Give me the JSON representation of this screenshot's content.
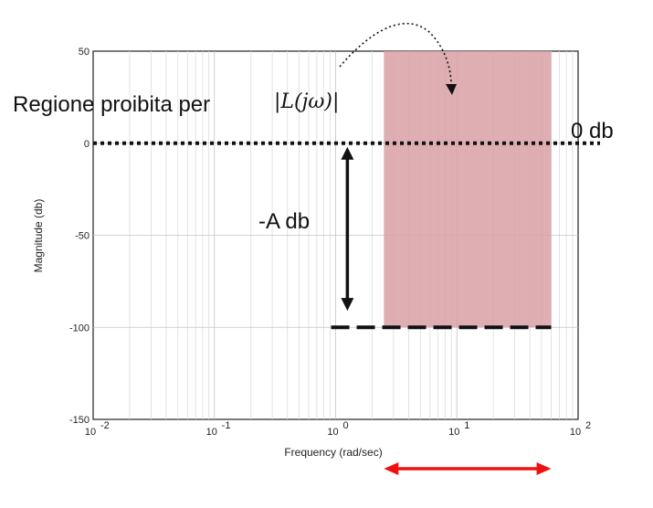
{
  "chart_data": {
    "type": "line",
    "title": "",
    "xlabel": "Frequency (rad/sec)",
    "ylabel": "Magnitude (db)",
    "xscale": "log",
    "xlim": [
      0.01,
      100
    ],
    "ylim": [
      -150,
      50
    ],
    "grid": true,
    "x_ticks": [
      {
        "base": "10",
        "exp": "-2"
      },
      {
        "base": "10",
        "exp": "-1"
      },
      {
        "base": "10",
        "exp": "0"
      },
      {
        "base": "10",
        "exp": "1"
      },
      {
        "base": "10",
        "exp": "2"
      }
    ],
    "y_ticks": [
      "50",
      "0",
      "-50",
      "-100",
      "-150"
    ],
    "y_tick_values": [
      50,
      0,
      -50,
      -100,
      -150
    ],
    "forbidden_region": {
      "x": [
        2.5,
        60
      ],
      "y": [
        -100,
        50
      ],
      "color": "#d9a0a4"
    },
    "zero_line": {
      "y": 0,
      "x": [
        0.01,
        100
      ],
      "style": "dotted"
    },
    "lower_bound_line": {
      "y": -100,
      "x": [
        0.95,
        60
      ],
      "style": "dashed"
    },
    "arrow_A": {
      "x": 1.25,
      "y": [
        0,
        -95
      ]
    },
    "frequency_range_arrow": {
      "x": [
        2.5,
        60
      ],
      "color": "#ee1111"
    },
    "annotations": {
      "forbidden_label": "Regione proibita per",
      "forbidden_math": "|L(jω)|",
      "zero_db_label": "0 db",
      "A_label": "-A db"
    }
  }
}
